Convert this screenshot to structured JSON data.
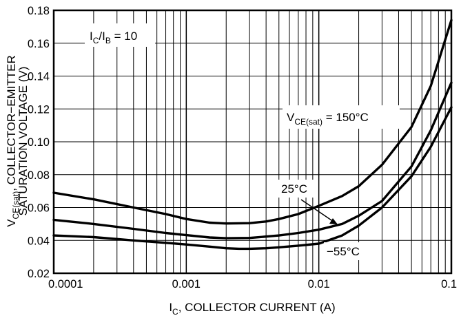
{
  "chart_data": {
    "type": "line",
    "x_scale": "log",
    "xlim": [
      0.0001,
      0.1
    ],
    "ylim": [
      0.02,
      0.18
    ],
    "grid": true,
    "x_ticks": [
      {
        "value": 0.0001,
        "label": "0.0001"
      },
      {
        "value": 0.001,
        "label": "0.001"
      },
      {
        "value": 0.01,
        "label": "0.01"
      },
      {
        "value": 0.1,
        "label": "0.1"
      }
    ],
    "y_ticks": [
      {
        "value": 0.02,
        "label": "0.02"
      },
      {
        "value": 0.04,
        "label": "0.04"
      },
      {
        "value": 0.06,
        "label": "0.06"
      },
      {
        "value": 0.08,
        "label": "0.08"
      },
      {
        "value": 0.1,
        "label": "0.10"
      },
      {
        "value": 0.12,
        "label": "0.12"
      },
      {
        "value": 0.14,
        "label": "0.14"
      },
      {
        "value": 0.16,
        "label": "0.16"
      },
      {
        "value": 0.18,
        "label": "0.18"
      }
    ],
    "xlabel": {
      "pre": "I",
      "sub": "C",
      "post": ", COLLECTOR CURRENT (A)"
    },
    "ylabel": {
      "line1_pre": "V",
      "line1_sub": "CE(sat)",
      "line1_post": ", COLLECTOR−EMITTER",
      "line2": "SATURATION VOLTAGE (V)"
    },
    "annotations": {
      "ratio": {
        "a": "I",
        "a_sub": "C",
        "slash": "/I",
        "b_sub": "B",
        "rest": " = 10"
      },
      "curve_150": {
        "pre": "V",
        "sub": "CE(sat)",
        "post": " = 150°C"
      },
      "curve_25": "25°C",
      "curve_m55": "−55°C"
    },
    "series": [
      {
        "x": [
          0.0001,
          0.0002,
          0.0004,
          0.0007,
          0.001,
          0.0015,
          0.002,
          0.003,
          0.004,
          0.005,
          0.007,
          0.01,
          0.015,
          0.02,
          0.03,
          0.05,
          0.07,
          0.1
        ],
        "y": [
          0.069,
          0.065,
          0.06,
          0.056,
          0.053,
          0.0508,
          0.0503,
          0.0505,
          0.0515,
          0.053,
          0.056,
          0.061,
          0.067,
          0.073,
          0.086,
          0.109,
          0.134,
          0.174
        ]
      },
      {
        "x": [
          0.0001,
          0.0002,
          0.0004,
          0.0007,
          0.001,
          0.0015,
          0.002,
          0.003,
          0.005,
          0.007,
          0.01,
          0.015,
          0.02,
          0.03,
          0.05,
          0.07,
          0.1
        ],
        "y": [
          0.0525,
          0.05,
          0.047,
          0.0445,
          0.0432,
          0.0418,
          0.0413,
          0.0415,
          0.043,
          0.0445,
          0.0465,
          0.05,
          0.055,
          0.064,
          0.085,
          0.107,
          0.136
        ]
      },
      {
        "x": [
          0.0001,
          0.0002,
          0.0004,
          0.0007,
          0.001,
          0.0015,
          0.002,
          0.0025,
          0.003,
          0.004,
          0.005,
          0.007,
          0.01,
          0.015,
          0.02,
          0.03,
          0.05,
          0.07,
          0.1
        ],
        "y": [
          0.043,
          0.042,
          0.04,
          0.0385,
          0.0375,
          0.0362,
          0.0352,
          0.0349,
          0.0349,
          0.0352,
          0.0358,
          0.0368,
          0.038,
          0.043,
          0.049,
          0.06,
          0.079,
          0.097,
          0.121
        ]
      }
    ]
  }
}
